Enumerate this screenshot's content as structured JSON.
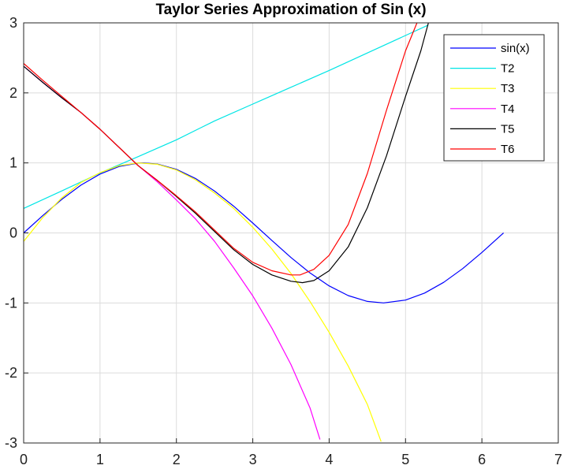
{
  "chart_data": {
    "type": "line",
    "title": "Taylor Series Approximation of Sin (x)",
    "xlabel": "",
    "ylabel": "",
    "xlim": [
      0,
      7
    ],
    "ylim": [
      -3,
      3
    ],
    "x_ticks": [
      "0",
      "1",
      "2",
      "3",
      "4",
      "5",
      "6",
      "7"
    ],
    "y_ticks": [
      "3",
      "2",
      "1",
      "0",
      "-1",
      "-2",
      "-3"
    ],
    "grid": true,
    "legend_position": "top-right",
    "series": [
      {
        "name": "sin(x)",
        "color": "#0000ff",
        "x": [
          0,
          0.25,
          0.5,
          0.75,
          1.0,
          1.25,
          1.5,
          1.571,
          1.75,
          2.0,
          2.25,
          2.5,
          2.75,
          3.0,
          3.25,
          3.5,
          3.75,
          4.0,
          4.25,
          4.5,
          4.712,
          5.0,
          5.25,
          5.5,
          5.75,
          6.0,
          6.283
        ],
        "y": [
          0,
          0.247,
          0.479,
          0.682,
          0.841,
          0.949,
          0.997,
          1.0,
          0.984,
          0.909,
          0.778,
          0.598,
          0.382,
          0.141,
          -0.108,
          -0.351,
          -0.572,
          -0.757,
          -0.895,
          -0.978,
          -1.0,
          -0.959,
          -0.859,
          -0.706,
          -0.509,
          -0.279,
          0.0
        ]
      },
      {
        "name": "T2",
        "color": "#00e5e5",
        "x": [
          0,
          0.5,
          1.0,
          1.5,
          2.0,
          2.5,
          3.0,
          3.5,
          4.0,
          4.5,
          5.0,
          5.3
        ],
        "y": [
          0.35,
          0.6,
          0.855,
          1.09,
          1.33,
          1.6,
          1.84,
          2.08,
          2.32,
          2.57,
          2.82,
          2.97
        ]
      },
      {
        "name": "T3",
        "color": "#ffff00",
        "x": [
          0,
          0.25,
          0.5,
          0.75,
          1.0,
          1.25,
          1.5,
          1.75,
          2.0,
          2.25,
          2.5,
          2.75,
          3.0,
          3.25,
          3.5,
          3.75,
          4.0,
          4.25,
          4.5,
          4.68
        ],
        "y": [
          -0.12,
          0.22,
          0.5,
          0.72,
          0.86,
          0.96,
          1.0,
          0.98,
          0.9,
          0.76,
          0.57,
          0.35,
          0.08,
          -0.23,
          -0.58,
          -0.98,
          -1.42,
          -1.9,
          -2.45,
          -2.98
        ]
      },
      {
        "name": "T4",
        "color": "#ff00ff",
        "x": [
          0,
          0.25,
          0.5,
          0.75,
          1.0,
          1.25,
          1.5,
          1.75,
          2.0,
          2.25,
          2.5,
          2.75,
          3.0,
          3.25,
          3.5,
          3.75,
          3.88
        ],
        "y": [
          2.38,
          2.15,
          1.93,
          1.72,
          1.48,
          1.22,
          0.96,
          0.73,
          0.47,
          0.2,
          -0.12,
          -0.5,
          -0.9,
          -1.36,
          -1.88,
          -2.5,
          -2.95
        ]
      },
      {
        "name": "T5",
        "color": "#000000",
        "x": [
          0,
          0.25,
          0.5,
          0.75,
          1.0,
          1.25,
          1.5,
          1.75,
          2.0,
          2.25,
          2.5,
          2.75,
          3.0,
          3.25,
          3.5,
          3.65,
          3.8,
          4.0,
          4.25,
          4.5,
          4.75,
          5.0,
          5.2,
          5.3
        ],
        "y": [
          2.38,
          2.15,
          1.93,
          1.72,
          1.48,
          1.22,
          0.96,
          0.75,
          0.52,
          0.28,
          0.02,
          -0.24,
          -0.45,
          -0.6,
          -0.69,
          -0.71,
          -0.68,
          -0.54,
          -0.2,
          0.36,
          1.1,
          1.95,
          2.6,
          3.0
        ]
      },
      {
        "name": "T6",
        "color": "#ff0000",
        "x": [
          0,
          0.25,
          0.5,
          0.75,
          1.0,
          1.25,
          1.5,
          1.75,
          2.0,
          2.25,
          2.5,
          2.75,
          3.0,
          3.25,
          3.5,
          3.62,
          3.8,
          4.0,
          4.25,
          4.5,
          4.75,
          5.0,
          5.15
        ],
        "y": [
          2.42,
          2.18,
          1.95,
          1.72,
          1.48,
          1.22,
          0.96,
          0.75,
          0.53,
          0.3,
          0.04,
          -0.22,
          -0.42,
          -0.54,
          -0.6,
          -0.6,
          -0.52,
          -0.32,
          0.12,
          0.85,
          1.75,
          2.6,
          3.0
        ]
      }
    ]
  }
}
